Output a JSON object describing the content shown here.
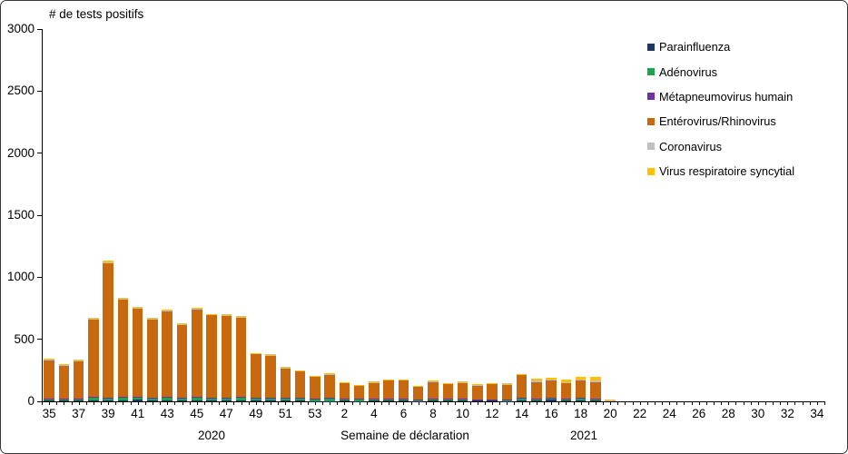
{
  "chart": {
    "title": "# de tests positifs",
    "x_axis_title": "Semaine de déclaration",
    "year_left": "2020",
    "year_right": "2021"
  },
  "chart_data": {
    "type": "bar",
    "stacked": true,
    "title": "# de tests positifs",
    "xlabel": "Semaine de déclaration",
    "ylabel": "# de tests positifs",
    "ylim": [
      0,
      3000
    ],
    "yticks": [
      0,
      500,
      1000,
      1500,
      2000,
      2500,
      3000
    ],
    "grid": false,
    "legend_position": "top-right",
    "year_groups": [
      {
        "year": "2020",
        "weeks_from": 35,
        "weeks_to": 53
      },
      {
        "year": "2021",
        "weeks_from": 1,
        "weeks_to": 34
      }
    ],
    "categories": [
      "35",
      "36",
      "37",
      "38",
      "39",
      "40",
      "41",
      "42",
      "43",
      "44",
      "45",
      "46",
      "47",
      "48",
      "49",
      "50",
      "51",
      "52",
      "53",
      "1",
      "2",
      "3",
      "4",
      "5",
      "6",
      "7",
      "8",
      "9",
      "10",
      "11",
      "12",
      "13",
      "14",
      "15",
      "16",
      "17",
      "18",
      "19",
      "20",
      "21",
      "22",
      "23",
      "24",
      "25",
      "26",
      "27",
      "28",
      "29",
      "30",
      "31",
      "32",
      "33",
      "34"
    ],
    "x_labels": [
      "35",
      "37",
      "39",
      "41",
      "43",
      "45",
      "47",
      "49",
      "51",
      "53",
      "2",
      "4",
      "6",
      "8",
      "10",
      "12",
      "14",
      "16",
      "18",
      "20",
      "22",
      "24",
      "26",
      "28",
      "30",
      "32",
      "34"
    ],
    "x_label_indices": [
      0,
      2,
      4,
      6,
      8,
      10,
      12,
      14,
      16,
      18,
      20,
      22,
      24,
      26,
      28,
      30,
      32,
      34,
      36,
      38,
      40,
      42,
      44,
      46,
      48,
      50,
      52
    ],
    "series": [
      {
        "name": "Parainfluenza",
        "color": "#1F3864",
        "values": [
          5,
          5,
          5,
          5,
          8,
          10,
          12,
          8,
          8,
          8,
          10,
          8,
          6,
          6,
          5,
          5,
          4,
          4,
          3,
          3,
          4,
          3,
          6,
          4,
          4,
          3,
          6,
          5,
          5,
          4,
          4,
          3,
          4,
          4,
          15,
          4,
          8,
          4,
          0,
          0,
          0,
          0,
          0,
          0,
          0,
          0,
          0,
          0,
          0,
          0,
          0,
          0,
          0
        ]
      },
      {
        "name": "Adénovirus",
        "color": "#1EA352",
        "values": [
          15,
          15,
          15,
          25,
          20,
          20,
          20,
          18,
          22,
          18,
          20,
          20,
          22,
          25,
          20,
          20,
          20,
          15,
          18,
          22,
          12,
          10,
          10,
          15,
          14,
          12,
          12,
          12,
          12,
          8,
          10,
          10,
          25,
          18,
          10,
          15,
          15,
          15,
          0,
          0,
          0,
          0,
          0,
          0,
          0,
          0,
          0,
          0,
          0,
          0,
          0,
          0,
          0
        ]
      },
      {
        "name": "Métapneumovirus humain",
        "color": "#7030A0",
        "values": [
          2,
          2,
          5,
          3,
          3,
          3,
          3,
          3,
          3,
          4,
          3,
          3,
          3,
          3,
          3,
          5,
          5,
          8,
          4,
          4,
          6,
          6,
          4,
          3,
          3,
          3,
          3,
          3,
          3,
          3,
          3,
          3,
          3,
          3,
          3,
          3,
          3,
          3,
          0,
          0,
          0,
          0,
          0,
          0,
          0,
          0,
          0,
          0,
          0,
          0,
          0,
          0,
          0
        ]
      },
      {
        "name": "Entérovirus/Rhinovirus",
        "color": "#C8690F",
        "values": [
          315,
          270,
          300,
          625,
          1085,
          790,
          715,
          630,
          695,
          590,
          710,
          665,
          660,
          645,
          355,
          343,
          240,
          217,
          173,
          190,
          125,
          108,
          132,
          145,
          146,
          100,
          136,
          122,
          130,
          115,
          123,
          119,
          180,
          127,
          140,
          123,
          144,
          133,
          0,
          0,
          0,
          0,
          0,
          0,
          0,
          0,
          0,
          0,
          0,
          0,
          0,
          0,
          0
        ]
      },
      {
        "name": "Coronavirus",
        "color": "#BFBFBF",
        "values": [
          3,
          3,
          5,
          5,
          7,
          5,
          4,
          4,
          4,
          4,
          4,
          3,
          3,
          4,
          3,
          3,
          3,
          3,
          4,
          3,
          5,
          5,
          5,
          5,
          5,
          4,
          5,
          5,
          5,
          5,
          5,
          5,
          5,
          13,
          8,
          12,
          8,
          15,
          7,
          0,
          0,
          0,
          0,
          0,
          0,
          0,
          0,
          0,
          0,
          0,
          0,
          0,
          0
        ]
      },
      {
        "name": "Virus respiratoire syncytial",
        "color": "#FFC000",
        "values": [
          5,
          5,
          5,
          7,
          12,
          7,
          6,
          7,
          8,
          6,
          8,
          6,
          6,
          7,
          4,
          4,
          3,
          3,
          3,
          3,
          3,
          3,
          3,
          3,
          3,
          3,
          3,
          3,
          3,
          5,
          5,
          5,
          5,
          15,
          15,
          20,
          17,
          25,
          8,
          0,
          0,
          0,
          0,
          0,
          0,
          0,
          0,
          0,
          0,
          0,
          0,
          0,
          0
        ]
      }
    ]
  }
}
